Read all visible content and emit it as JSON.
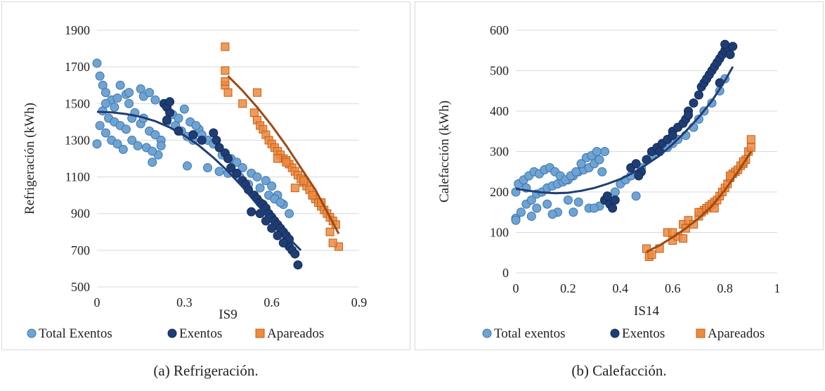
{
  "captions": {
    "a": "(a) Refrigeración.",
    "b": "(b) Calefacción."
  },
  "colors": {
    "total": "#6fa3d2",
    "exentos": "#1f3d75",
    "apareados": "#ed8a3f",
    "trend_exentos": "#1f3d75",
    "trend_apareados": "#9e4a12"
  },
  "chart_data": [
    {
      "type": "scatter",
      "xlabel": "IS9",
      "ylabel": "Refrigeración (kWh)",
      "xlim": [
        0,
        0.9
      ],
      "ylim": [
        500,
        1900
      ],
      "x_ticks": [
        "0",
        "0.3",
        "0.6",
        "0.9"
      ],
      "y_ticks": [
        "500",
        "700",
        "900",
        "1100",
        "1300",
        "1500",
        "1700",
        "1900"
      ],
      "legend_position": "bottom",
      "grid": "horizontal",
      "series": [
        {
          "name": "Total Exentos",
          "marker": "circle",
          "x": [
            0,
            0.01,
            0.02,
            0.03,
            0.05,
            0.06,
            0.08,
            0.1,
            0.11,
            0.13,
            0.15,
            0.16,
            0.18,
            0.2,
            0.01,
            0.03,
            0.05,
            0.07,
            0.09,
            0.12,
            0.14,
            0.17,
            0.19,
            0.21,
            0.02,
            0.04,
            0.06,
            0.08,
            0.1,
            0.12,
            0.15,
            0.18,
            0.2,
            0.22,
            0.24,
            0.27,
            0.29,
            0.31,
            0.33,
            0.35,
            0.26,
            0.28,
            0.3,
            0.32,
            0.34,
            0.36,
            0.38,
            0.4,
            0.43,
            0.46,
            0.48,
            0.5,
            0.53,
            0.55,
            0.58,
            0.6,
            0.62,
            0.64,
            0.66,
            0.38,
            0.42,
            0.45,
            0.49,
            0.52,
            0.56,
            0.59,
            0.61,
            0.63,
            0.0,
            0.03,
            0.07,
            0.11,
            0.16,
            0.19,
            0.22,
            0.31
          ],
          "y": [
            1720,
            1650,
            1600,
            1560,
            1520,
            1480,
            1600,
            1550,
            1500,
            1450,
            1580,
            1540,
            1560,
            1520,
            1380,
            1340,
            1300,
            1280,
            1250,
            1300,
            1270,
            1260,
            1180,
            1220,
            1460,
            1420,
            1400,
            1380,
            1360,
            1420,
            1390,
            1350,
            1330,
            1300,
            1400,
            1380,
            1350,
            1320,
            1300,
            1360,
            1440,
            1420,
            1470,
            1400,
            1380,
            1330,
            1300,
            1280,
            1220,
            1200,
            1180,
            1150,
            1120,
            1100,
            1080,
            1050,
            1000,
            950,
            900,
            1150,
            1130,
            1120,
            1100,
            1060,
            1040,
            1000,
            980,
            960,
            1280,
            1500,
            1530,
            1560,
            1420,
            1240,
            1270,
            1160
          ]
        },
        {
          "name": "Exentos",
          "marker": "circle",
          "x": [
            0.23,
            0.24,
            0.25,
            0.25,
            0.24,
            0.28,
            0.33,
            0.36,
            0.4,
            0.41,
            0.42,
            0.44,
            0.45,
            0.46,
            0.48,
            0.5,
            0.51,
            0.52,
            0.54,
            0.55,
            0.56,
            0.57,
            0.58,
            0.59,
            0.6,
            0.61,
            0.62,
            0.63,
            0.64,
            0.65,
            0.66,
            0.66,
            0.67,
            0.68,
            0.69,
            0.64,
            0.62,
            0.6,
            0.58,
            0.56,
            0.53
          ],
          "y": [
            1500,
            1480,
            1510,
            1450,
            1410,
            1350,
            1330,
            1300,
            1340,
            1300,
            1260,
            1230,
            1200,
            1150,
            1120,
            1080,
            1060,
            1030,
            1000,
            980,
            960,
            950,
            930,
            900,
            880,
            860,
            840,
            820,
            800,
            780,
            760,
            720,
            700,
            680,
            620,
            740,
            780,
            820,
            860,
            900,
            910
          ]
        },
        {
          "name": "Apareados",
          "marker": "square",
          "x": [
            0.44,
            0.44,
            0.44,
            0.45,
            0.44,
            0.5,
            0.54,
            0.55,
            0.55,
            0.56,
            0.57,
            0.58,
            0.59,
            0.6,
            0.61,
            0.62,
            0.63,
            0.64,
            0.65,
            0.66,
            0.67,
            0.68,
            0.69,
            0.7,
            0.71,
            0.72,
            0.73,
            0.74,
            0.75,
            0.76,
            0.77,
            0.78,
            0.79,
            0.8,
            0.81,
            0.82,
            0.83,
            0.62,
            0.65,
            0.68,
            0.71,
            0.74,
            0.77,
            0.8,
            0.81
          ],
          "y": [
            1810,
            1680,
            1600,
            1560,
            1620,
            1500,
            1450,
            1560,
            1410,
            1380,
            1360,
            1330,
            1300,
            1280,
            1260,
            1240,
            1220,
            1200,
            1190,
            1170,
            1150,
            1130,
            1110,
            1090,
            1070,
            1050,
            1030,
            1000,
            980,
            960,
            940,
            920,
            900,
            880,
            860,
            840,
            720,
            1200,
            1180,
            1040,
            1080,
            1000,
            960,
            800,
            740
          ]
        },
        {
          "name": "trend-exentos",
          "kind": "trendline",
          "x": [
            0,
            0.05,
            0.1,
            0.15,
            0.2,
            0.25,
            0.3,
            0.35,
            0.4,
            0.45,
            0.5,
            0.55,
            0.6,
            0.65,
            0.7
          ],
          "y": [
            1455,
            1452,
            1443,
            1428,
            1404,
            1370,
            1326,
            1271,
            1205,
            1130,
            1045,
            950,
            860,
            780,
            700
          ]
        },
        {
          "name": "trend-apareados",
          "kind": "trendline",
          "x": [
            0.45,
            0.5,
            0.55,
            0.6,
            0.65,
            0.7,
            0.75,
            0.8,
            0.83
          ],
          "y": [
            1650,
            1570,
            1480,
            1380,
            1270,
            1150,
            1030,
            880,
            790
          ]
        }
      ]
    },
    {
      "type": "scatter",
      "xlabel": "IS14",
      "ylabel": "Calefacción (kWh)",
      "xlim": [
        0,
        1
      ],
      "ylim": [
        0,
        600
      ],
      "x_ticks": [
        "0",
        "0.2",
        "0.4",
        "0.6",
        "0.8",
        "1"
      ],
      "y_ticks": [
        "0",
        "100",
        "200",
        "300",
        "400",
        "500",
        "600"
      ],
      "legend_position": "bottom",
      "grid": "horizontal",
      "series": [
        {
          "name": "Total exentos",
          "marker": "circle",
          "x": [
            0.0,
            0.02,
            0.04,
            0.06,
            0.08,
            0.1,
            0.12,
            0.14,
            0.16,
            0.18,
            0.2,
            0.22,
            0.24,
            0.26,
            0.28,
            0.3,
            0.32,
            0.34,
            0.01,
            0.03,
            0.05,
            0.07,
            0.09,
            0.11,
            0.13,
            0.15,
            0.17,
            0.19,
            0.21,
            0.23,
            0.25,
            0.27,
            0.29,
            0.31,
            0.33,
            0.0,
            0.04,
            0.08,
            0.12,
            0.16,
            0.2,
            0.24,
            0.28,
            0.32,
            0.38,
            0.4,
            0.42,
            0.44,
            0.48,
            0.5,
            0.52,
            0.55,
            0.58,
            0.6,
            0.62,
            0.65,
            0.68,
            0.7,
            0.72,
            0.75,
            0.78,
            0.8,
            0.0,
            0.06,
            0.14,
            0.22,
            0.3,
            0.36,
            0.46
          ],
          "y": [
            135,
            150,
            170,
            180,
            195,
            200,
            210,
            215,
            220,
            225,
            230,
            240,
            250,
            255,
            260,
            270,
            280,
            300,
            220,
            230,
            240,
            250,
            245,
            255,
            260,
            250,
            240,
            230,
            240,
            250,
            270,
            285,
            290,
            300,
            250,
            200,
            210,
            160,
            170,
            150,
            180,
            175,
            160,
            165,
            200,
            220,
            230,
            240,
            260,
            280,
            290,
            300,
            310,
            320,
            330,
            340,
            360,
            380,
            400,
            420,
            450,
            480,
            130,
            140,
            145,
            150,
            160,
            170,
            190
          ]
        },
        {
          "name": "Exentos",
          "marker": "circle",
          "x": [
            0.34,
            0.35,
            0.36,
            0.37,
            0.38,
            0.44,
            0.46,
            0.48,
            0.5,
            0.52,
            0.54,
            0.56,
            0.58,
            0.6,
            0.62,
            0.64,
            0.65,
            0.66,
            0.68,
            0.7,
            0.71,
            0.72,
            0.73,
            0.74,
            0.75,
            0.76,
            0.77,
            0.78,
            0.79,
            0.8,
            0.81,
            0.82,
            0.83,
            0.47,
            0.55,
            0.6,
            0.66,
            0.78,
            0.8
          ],
          "y": [
            180,
            190,
            170,
            160,
            180,
            260,
            270,
            250,
            280,
            300,
            310,
            320,
            330,
            350,
            360,
            370,
            380,
            400,
            420,
            440,
            460,
            470,
            480,
            490,
            500,
            510,
            520,
            530,
            540,
            550,
            555,
            540,
            560,
            240,
            300,
            340,
            390,
            470,
            565
          ]
        },
        {
          "name": "Apareados",
          "marker": "square",
          "x": [
            0.5,
            0.51,
            0.52,
            0.55,
            0.58,
            0.6,
            0.62,
            0.64,
            0.65,
            0.66,
            0.68,
            0.7,
            0.71,
            0.72,
            0.73,
            0.74,
            0.75,
            0.76,
            0.77,
            0.78,
            0.79,
            0.8,
            0.81,
            0.82,
            0.83,
            0.84,
            0.85,
            0.86,
            0.87,
            0.88,
            0.89,
            0.9,
            0.9,
            0.6,
            0.64,
            0.7,
            0.76,
            0.82,
            0.87
          ],
          "y": [
            60,
            40,
            45,
            60,
            100,
            80,
            90,
            120,
            110,
            130,
            120,
            140,
            150,
            155,
            160,
            165,
            170,
            175,
            180,
            190,
            200,
            210,
            220,
            235,
            245,
            250,
            255,
            265,
            270,
            280,
            300,
            310,
            330,
            100,
            85,
            150,
            160,
            240,
            275
          ]
        },
        {
          "name": "trend-exentos",
          "kind": "trendline",
          "x": [
            0,
            0.05,
            0.1,
            0.15,
            0.2,
            0.25,
            0.3,
            0.35,
            0.4,
            0.45,
            0.5,
            0.55,
            0.6,
            0.65,
            0.7,
            0.75,
            0.8,
            0.83
          ],
          "y": [
            208,
            203,
            199,
            197,
            198,
            203,
            210,
            220,
            232,
            248,
            268,
            290,
            318,
            350,
            385,
            425,
            475,
            510
          ]
        },
        {
          "name": "trend-apareados",
          "kind": "trendline",
          "x": [
            0.5,
            0.55,
            0.6,
            0.65,
            0.7,
            0.75,
            0.8,
            0.85,
            0.9
          ],
          "y": [
            52,
            68,
            88,
            110,
            135,
            165,
            205,
            250,
            300
          ]
        }
      ]
    }
  ]
}
